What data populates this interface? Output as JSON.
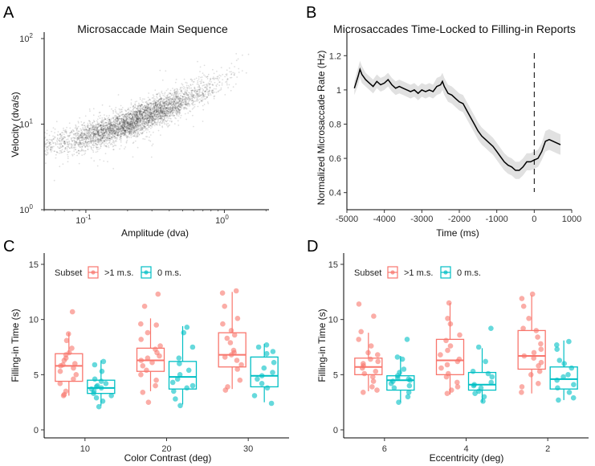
{
  "figure": {
    "panels": [
      "A",
      "B",
      "C",
      "D"
    ]
  },
  "colors": {
    "red": "#F8766D",
    "teal": "#00BFC4",
    "dark": "#000000",
    "band": "#d9d9d9"
  },
  "chart_data": [
    {
      "panel": "A",
      "type": "scatter",
      "title": "Microsaccade Main Sequence",
      "xlabel": "Amplitude (dva)",
      "ylabel": "Velocity (dva/s)",
      "xscale": "log",
      "yscale": "log",
      "xlim": [
        0.05,
        2.1
      ],
      "ylim": [
        1,
        100
      ],
      "xticks": [
        {
          "value": 0.1,
          "label": "10^-1"
        },
        {
          "value": 1,
          "label": "10^0"
        }
      ],
      "yticks": [
        {
          "value": 1,
          "label": "10^0"
        },
        {
          "value": 10,
          "label": "10^1"
        },
        {
          "value": 100,
          "label": "10^2"
        }
      ],
      "density_note": "thousands of points along a power-law main sequence",
      "trend": {
        "x": [
          0.05,
          0.1,
          0.2,
          0.5,
          1.0,
          2.0
        ],
        "y": [
          5.5,
          7.0,
          10.0,
          19.0,
          33.0,
          60.0
        ]
      }
    },
    {
      "panel": "B",
      "type": "line",
      "title": "Microsaccades Time-Locked to Filling-in Reports",
      "xlabel": "Time (ms)",
      "ylabel": "Normalized Microsaccade Rate (Hz)",
      "xlim": [
        -5000,
        1000
      ],
      "ylim": [
        0.3,
        1.3
      ],
      "xticks": [
        -5000,
        -4000,
        -3000,
        -2000,
        -1000,
        0,
        1000
      ],
      "yticks": [
        0.4,
        0.6,
        0.8,
        1.0,
        1.2
      ],
      "ytick_labels": [
        "0.4",
        "0.6",
        "0.8",
        "1",
        "1.2"
      ],
      "vline": 0,
      "x": [
        -4800,
        -4700,
        -4650,
        -4600,
        -4500,
        -4400,
        -4300,
        -4200,
        -4100,
        -4000,
        -3900,
        -3800,
        -3700,
        -3600,
        -3500,
        -3400,
        -3300,
        -3200,
        -3100,
        -3000,
        -2900,
        -2800,
        -2700,
        -2600,
        -2500,
        -2450,
        -2400,
        -2300,
        -2200,
        -2100,
        -2000,
        -1900,
        -1800,
        -1700,
        -1600,
        -1500,
        -1400,
        -1300,
        -1200,
        -1100,
        -1000,
        -900,
        -800,
        -700,
        -600,
        -500,
        -400,
        -300,
        -200,
        -100,
        0,
        100,
        200,
        300,
        400,
        500,
        600,
        700
      ],
      "y": [
        1.01,
        1.08,
        1.12,
        1.09,
        1.06,
        1.04,
        1.02,
        1.05,
        1.03,
        1.04,
        1.06,
        1.03,
        1.01,
        1.02,
        1.01,
        1.0,
        0.99,
        1.0,
        0.98,
        1.0,
        0.99,
        1.0,
        0.99,
        1.02,
        1.03,
        1.05,
        1.02,
        0.98,
        0.97,
        0.95,
        0.93,
        0.92,
        0.88,
        0.84,
        0.8,
        0.76,
        0.73,
        0.71,
        0.69,
        0.67,
        0.64,
        0.61,
        0.58,
        0.56,
        0.55,
        0.53,
        0.53,
        0.55,
        0.58,
        0.58,
        0.59,
        0.6,
        0.64,
        0.7,
        0.71,
        0.7,
        0.69,
        0.68
      ],
      "ci": [
        0.04,
        0.05,
        0.05,
        0.05,
        0.04,
        0.04,
        0.04,
        0.04,
        0.04,
        0.04,
        0.04,
        0.04,
        0.04,
        0.04,
        0.04,
        0.04,
        0.04,
        0.04,
        0.04,
        0.04,
        0.04,
        0.04,
        0.04,
        0.05,
        0.05,
        0.05,
        0.05,
        0.05,
        0.05,
        0.05,
        0.05,
        0.05,
        0.05,
        0.05,
        0.05,
        0.05,
        0.05,
        0.05,
        0.05,
        0.05,
        0.05,
        0.05,
        0.05,
        0.05,
        0.05,
        0.05,
        0.05,
        0.05,
        0.05,
        0.05,
        0.05,
        0.05,
        0.05,
        0.06,
        0.06,
        0.06,
        0.06,
        0.06
      ]
    },
    {
      "panel": "C",
      "type": "box",
      "xlabel": "Color Contrast (deg)",
      "ylabel": "Filling-in Time (s)",
      "ylim": [
        0,
        15
      ],
      "yticks": [
        0,
        5,
        10,
        15
      ],
      "categories": [
        "10",
        "20",
        "30"
      ],
      "legend": {
        "title": "Subset",
        "items": [
          ">1 m.s.",
          "0 m.s."
        ]
      },
      "series": [
        {
          "name": ">1 m.s.",
          "color_key": "red",
          "boxes": [
            {
              "q1": 4.4,
              "median": 5.8,
              "q3": 6.9,
              "low": 3.1,
              "high": 8.8
            },
            {
              "q1": 5.3,
              "median": 6.3,
              "q3": 7.4,
              "low": 3.5,
              "high": 10.1
            },
            {
              "q1": 5.7,
              "median": 6.8,
              "q3": 8.8,
              "low": 3.7,
              "high": 12.5
            }
          ],
          "points": [
            [
              3.1,
              3.2,
              3.5,
              4.2,
              4.6,
              5.0,
              5.3,
              5.6,
              5.8,
              5.9,
              6.0,
              6.3,
              6.5,
              6.8,
              7.0,
              7.4,
              8.1,
              8.7,
              10.7
            ],
            [
              2.5,
              3.4,
              4.0,
              4.5,
              5.0,
              5.4,
              5.8,
              6.1,
              6.3,
              6.5,
              6.7,
              7.0,
              7.3,
              7.6,
              8.2,
              8.8,
              9.5,
              9.6,
              11.2,
              12.3
            ],
            [
              3.6,
              3.9,
              4.5,
              5.5,
              5.9,
              6.3,
              6.6,
              6.8,
              7.0,
              7.2,
              7.9,
              8.3,
              8.6,
              9.0,
              9.6,
              10.1,
              11.2,
              12.4,
              12.6
            ]
          ]
        },
        {
          "name": "0 m.s.",
          "color_key": "teal",
          "boxes": [
            {
              "q1": 3.3,
              "median": 3.8,
              "q3": 4.5,
              "low": 2.2,
              "high": 6.3
            },
            {
              "q1": 3.7,
              "median": 4.8,
              "q3": 6.2,
              "low": 2.3,
              "high": 9.4
            },
            {
              "q1": 3.9,
              "median": 4.9,
              "q3": 6.6,
              "low": 2.5,
              "high": 7.8
            }
          ],
          "points": [
            [
              2.1,
              2.6,
              2.9,
              3.1,
              3.3,
              3.5,
              3.7,
              3.8,
              3.9,
              4.0,
              4.2,
              4.4,
              4.6,
              5.3,
              5.9,
              6.2
            ],
            [
              2.2,
              2.8,
              3.5,
              3.8,
              4.0,
              4.3,
              4.6,
              5.0,
              5.4,
              6.0,
              6.5,
              7.5,
              8.8,
              9.3
            ],
            [
              2.4,
              3.1,
              3.8,
              4.2,
              4.6,
              4.9,
              5.2,
              5.6,
              6.1,
              6.9,
              7.1,
              7.5,
              7.7
            ]
          ]
        }
      ]
    },
    {
      "panel": "D",
      "type": "box",
      "xlabel": "Eccentricity (deg)",
      "ylabel": "Filling-in Time (s)",
      "ylim": [
        0,
        15
      ],
      "yticks": [
        0,
        5,
        10,
        15
      ],
      "categories": [
        "6",
        "4",
        "2"
      ],
      "legend": {
        "title": "Subset",
        "items": [
          ">1 m.s.",
          "0 m.s."
        ]
      },
      "series": [
        {
          "name": ">1 m.s.",
          "color_key": "red",
          "boxes": [
            {
              "q1": 5.0,
              "median": 5.7,
              "q3": 6.5,
              "low": 3.5,
              "high": 8.8
            },
            {
              "q1": 5.0,
              "median": 6.3,
              "q3": 8.2,
              "low": 3.2,
              "high": 11.5
            },
            {
              "q1": 5.5,
              "median": 6.7,
              "q3": 9.0,
              "low": 3.3,
              "high": 12.2
            }
          ],
          "points": [
            [
              3.4,
              3.6,
              3.9,
              4.4,
              4.8,
              5.1,
              5.3,
              5.6,
              5.8,
              6.0,
              6.2,
              6.4,
              6.8,
              7.0,
              7.6,
              8.2,
              8.9,
              10.3,
              11.4
            ],
            [
              3.3,
              3.6,
              3.9,
              4.3,
              4.8,
              5.1,
              5.6,
              5.9,
              6.2,
              6.4,
              6.8,
              7.2,
              7.6,
              8.1,
              8.6,
              9.6,
              10.1,
              11.5
            ],
            [
              3.4,
              3.9,
              4.2,
              5.0,
              5.3,
              5.8,
              6.1,
              6.5,
              6.7,
              7.0,
              7.3,
              7.8,
              8.4,
              9.0,
              9.2,
              10.1,
              11.2,
              11.9,
              12.3
            ]
          ]
        },
        {
          "name": "0 m.s.",
          "color_key": "teal",
          "boxes": [
            {
              "q1": 3.6,
              "median": 4.5,
              "q3": 4.9,
              "low": 2.5,
              "high": 6.7
            },
            {
              "q1": 3.6,
              "median": 4.1,
              "q3": 5.2,
              "low": 2.5,
              "high": 7.4
            },
            {
              "q1": 3.7,
              "median": 4.6,
              "q3": 5.7,
              "low": 2.7,
              "high": 8.1
            }
          ],
          "points": [
            [
              2.5,
              3.0,
              3.4,
              3.8,
              4.0,
              4.2,
              4.4,
              4.5,
              4.6,
              4.7,
              4.9,
              5.2,
              5.5,
              6.4,
              6.6,
              8.2
            ],
            [
              2.6,
              3.0,
              3.3,
              3.5,
              3.8,
              4.0,
              4.1,
              4.3,
              4.8,
              5.1,
              5.3,
              6.2,
              7.5,
              9.2
            ],
            [
              2.7,
              2.9,
              3.4,
              3.8,
              4.1,
              4.5,
              4.8,
              5.0,
              5.6,
              6.0,
              6.3,
              7.3,
              7.7,
              8.0
            ]
          ]
        }
      ]
    }
  ]
}
